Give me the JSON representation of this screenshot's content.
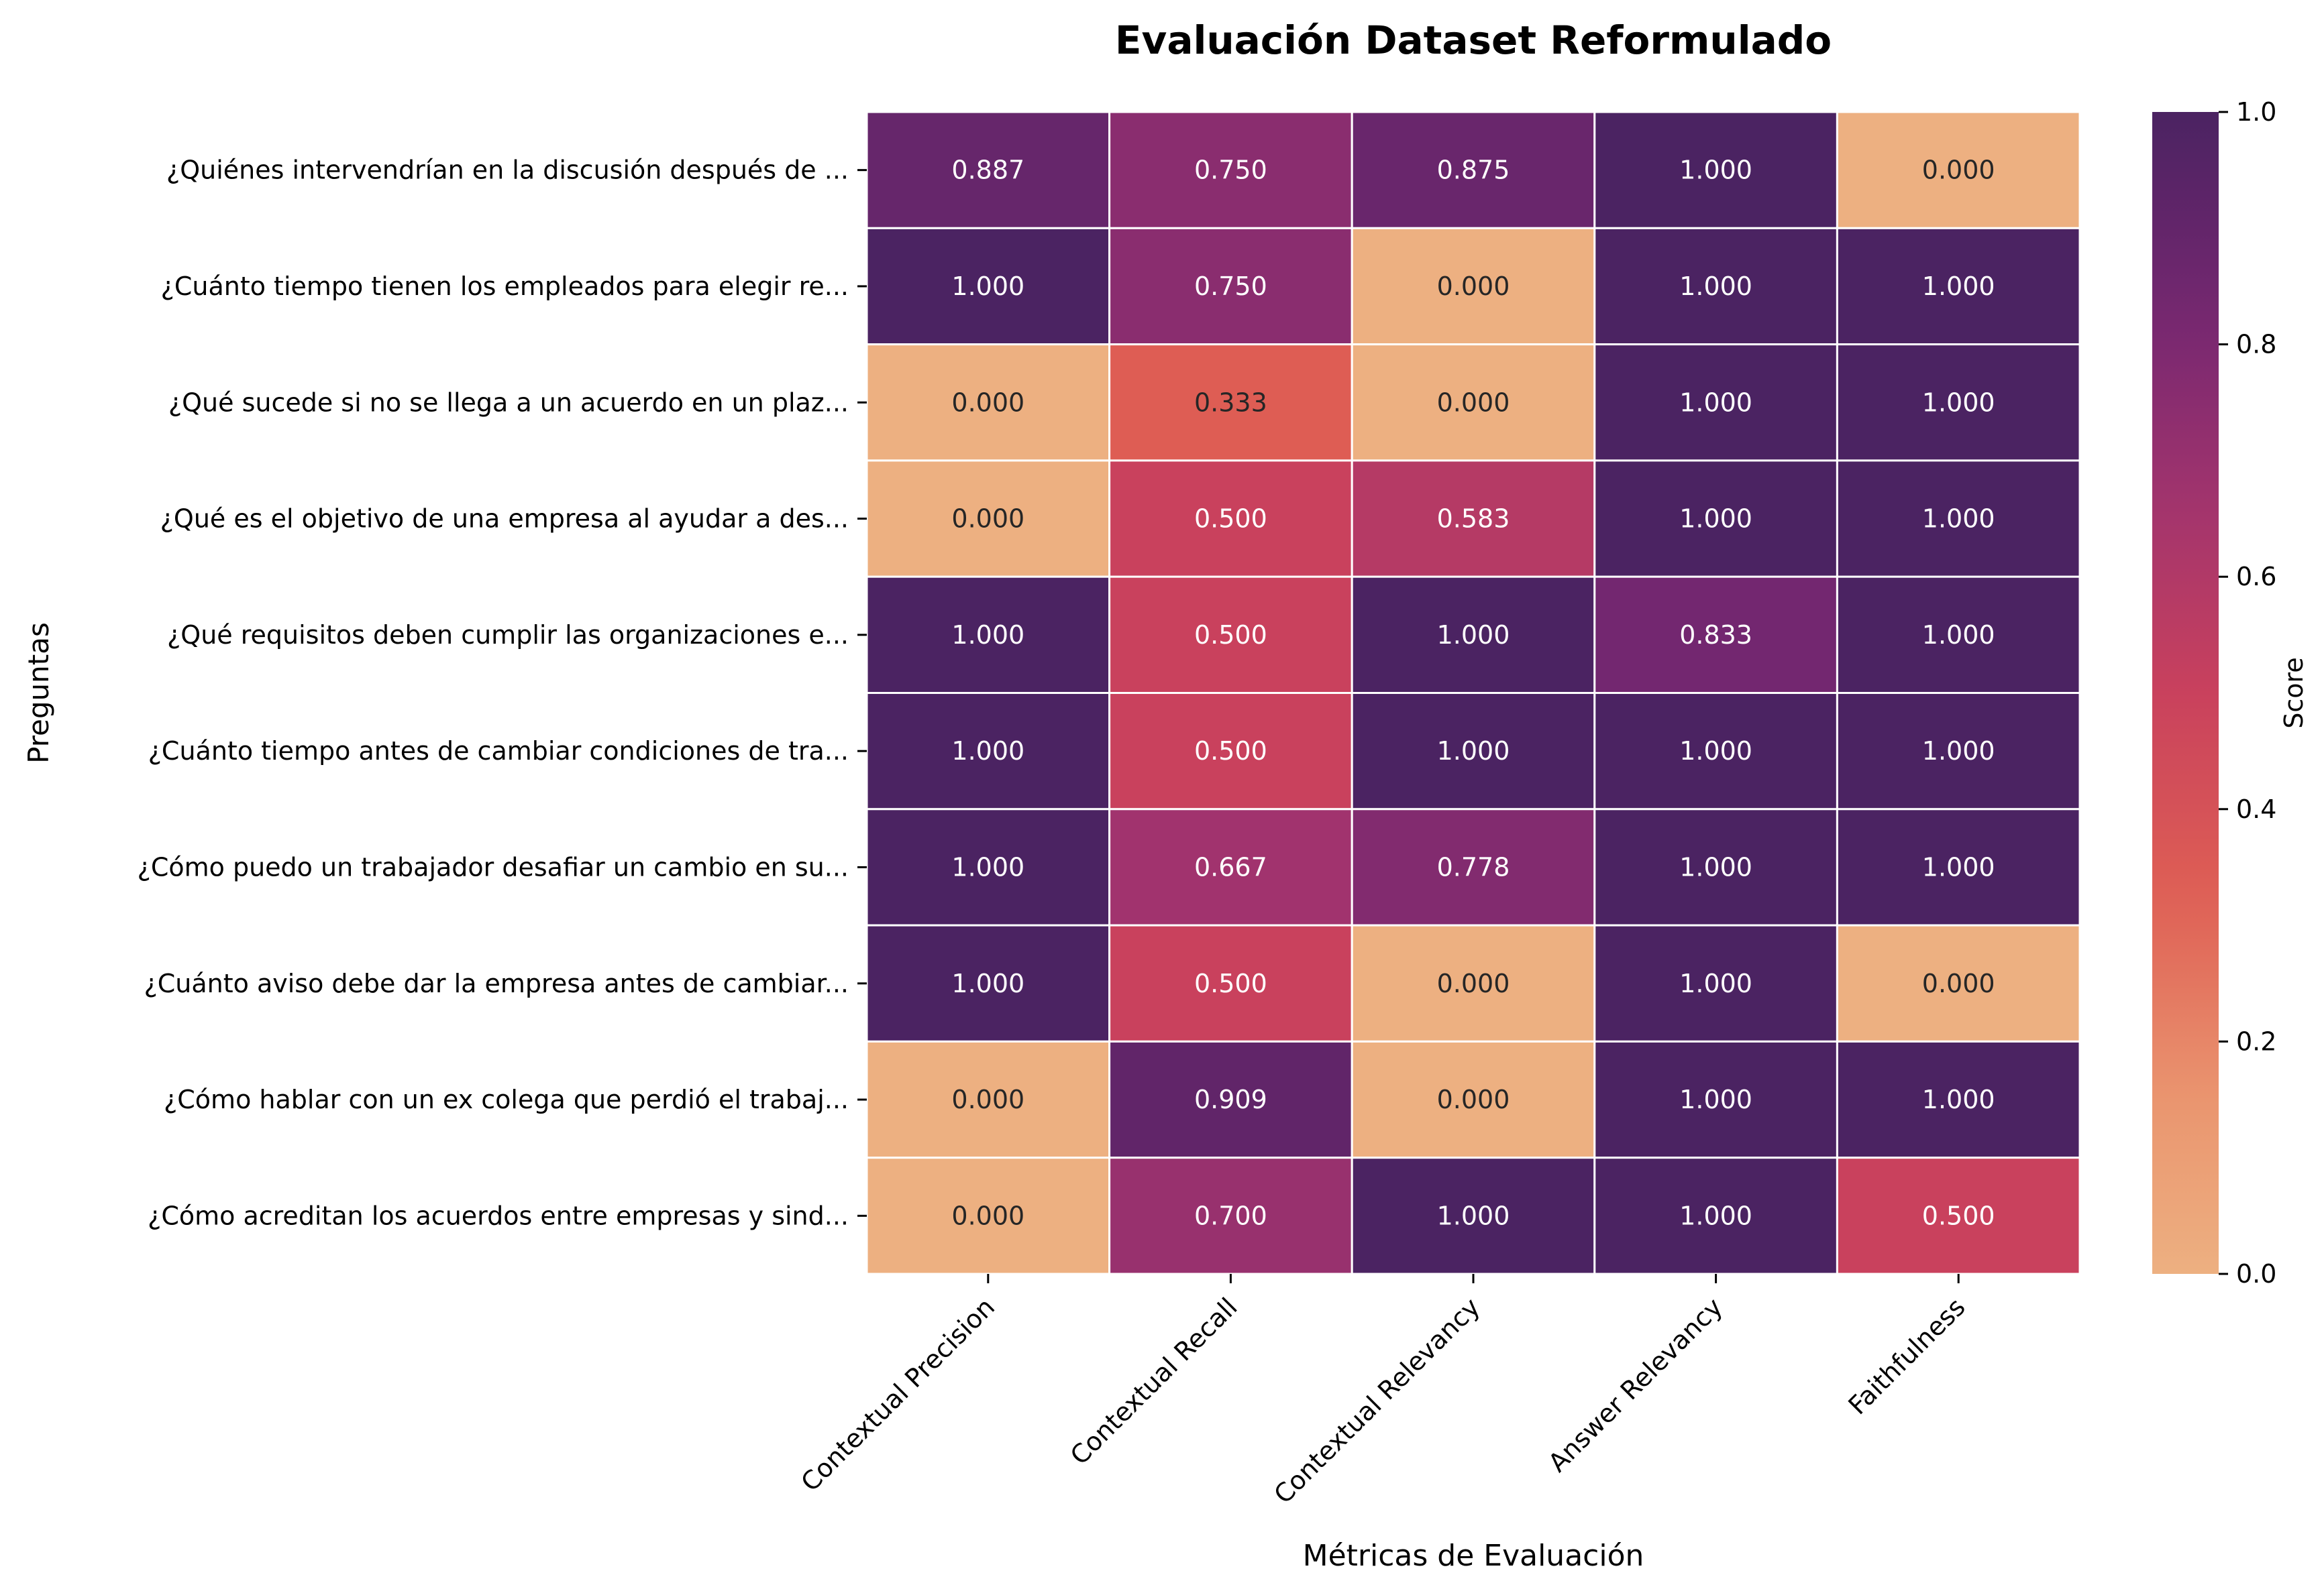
{
  "chart_data": {
    "type": "heatmap",
    "title": "Evaluación Dataset Reformulado",
    "xlabel": "Métricas de Evaluación",
    "ylabel": "Preguntas",
    "columns": [
      "Contextual Precision",
      "Contextual Recall",
      "Contextual Relevancy",
      "Answer Relevancy",
      "Faithfulness"
    ],
    "rows": [
      "¿Quiénes intervendrían en la discusión después de ...",
      "¿Cuánto tiempo tienen los empleados para elegir re...",
      "¿Qué sucede si no se llega a un acuerdo en un plaz...",
      "¿Qué es el objetivo de una empresa al ayudar a des...",
      "¿Qué requisitos deben cumplir las organizaciones e...",
      "¿Cuánto tiempo antes de cambiar condiciones de tra...",
      "¿Cómo puedo un trabajador desafiar un cambio en su...",
      "¿Cuánto aviso debe dar la empresa antes de cambiar...",
      "¿Cómo hablar con un ex colega que perdió el trabaj...",
      "¿Cómo acreditan los acuerdos entre empresas y sind..."
    ],
    "values": [
      [
        0.887,
        0.75,
        0.875,
        1.0,
        0.0
      ],
      [
        1.0,
        0.75,
        0.0,
        1.0,
        1.0
      ],
      [
        0.0,
        0.333,
        0.0,
        1.0,
        1.0
      ],
      [
        0.0,
        0.5,
        0.583,
        1.0,
        1.0
      ],
      [
        1.0,
        0.5,
        1.0,
        0.833,
        1.0
      ],
      [
        1.0,
        0.5,
        1.0,
        1.0,
        1.0
      ],
      [
        1.0,
        0.667,
        0.778,
        1.0,
        1.0
      ],
      [
        1.0,
        0.5,
        0.0,
        1.0,
        0.0
      ],
      [
        0.0,
        0.909,
        0.0,
        1.0,
        1.0
      ],
      [
        0.0,
        0.7,
        1.0,
        1.0,
        0.5
      ]
    ],
    "colorbar": {
      "label": "Score",
      "range": [
        0,
        1
      ],
      "ticks": [
        "0.0",
        "0.2",
        "0.4",
        "0.6",
        "0.8",
        "1.0"
      ],
      "colormap": "flare",
      "low_color": "#edb081",
      "high_color": "#4b2362"
    }
  }
}
